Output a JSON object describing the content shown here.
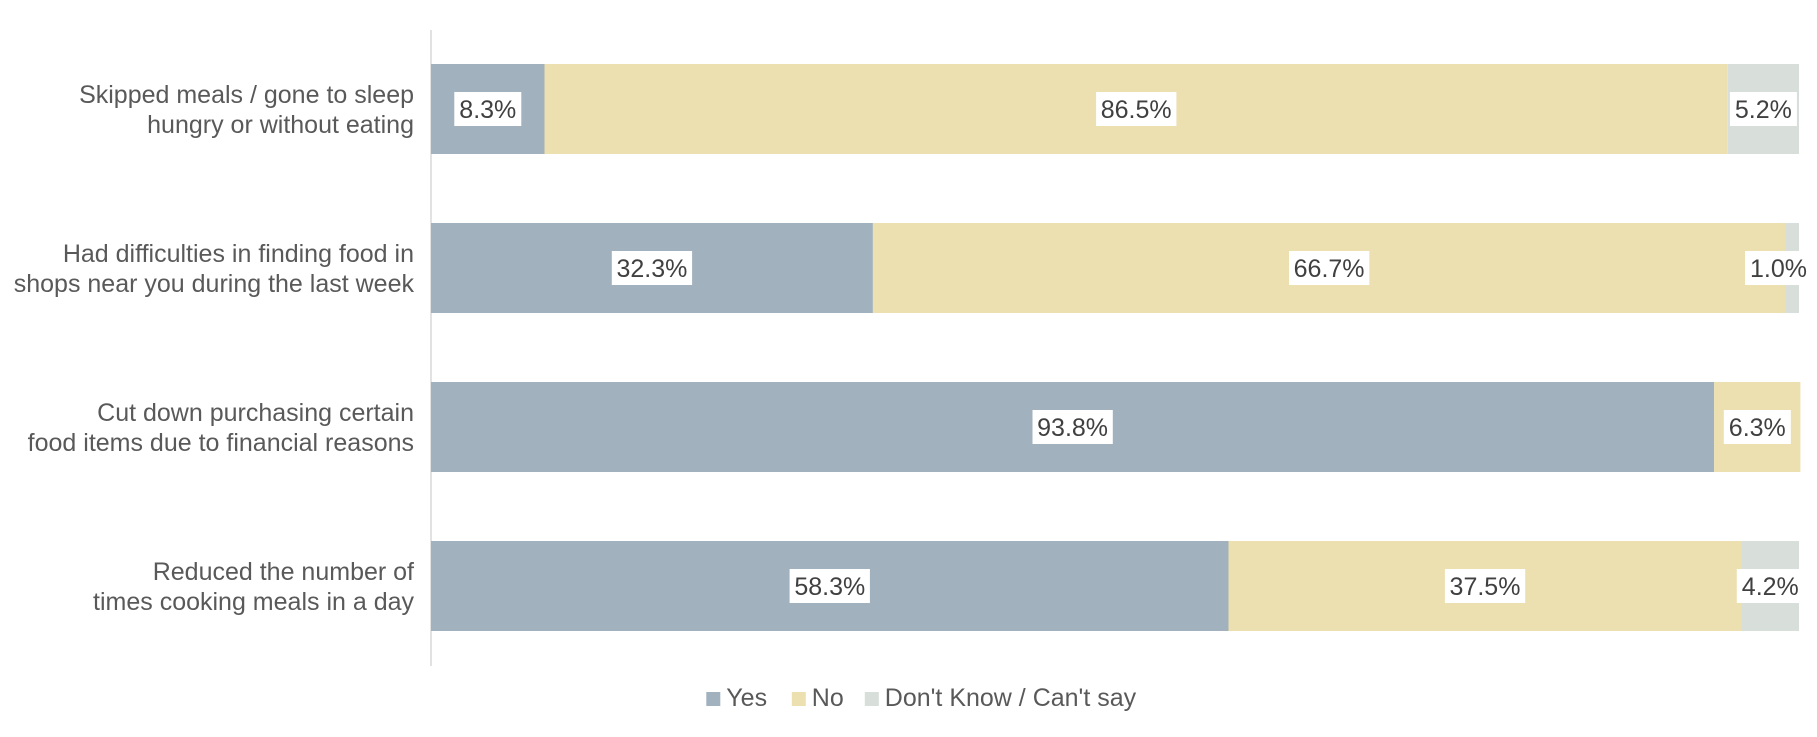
{
  "chart_data": {
    "type": "bar",
    "orientation": "horizontal",
    "stacked": true,
    "categories": [
      [
        "Skipped meals / gone to sleep",
        "hungry or without eating"
      ],
      [
        "Had difficulties in finding food in",
        "shops near you during the last week"
      ],
      [
        "Cut down purchasing certain",
        "food items due to financial reasons"
      ],
      [
        "Reduced the number of",
        "times cooking meals in a day"
      ]
    ],
    "series": [
      {
        "name": "Yes",
        "color": "#a2b1be",
        "values": [
          8.3,
          32.3,
          93.8,
          58.3
        ],
        "labels": [
          "8.3%",
          "32.3%",
          "93.8%",
          "58.3%"
        ]
      },
      {
        "name": "No",
        "color": "#ede0b0",
        "values": [
          86.5,
          66.7,
          6.3,
          37.5
        ],
        "labels": [
          "86.5%",
          "66.7%",
          "6.3%",
          "37.5%"
        ]
      },
      {
        "name": "Don't Know / Can't say",
        "color": "#d8ded9",
        "values": [
          5.2,
          1.0,
          0,
          4.2
        ],
        "labels": [
          "5.2%",
          "1.0%",
          "",
          "4.2%"
        ]
      }
    ],
    "xlim": [
      0,
      100
    ],
    "grid": false,
    "legend": "bottom-center",
    "title": "",
    "xlabel": "",
    "ylabel": ""
  }
}
